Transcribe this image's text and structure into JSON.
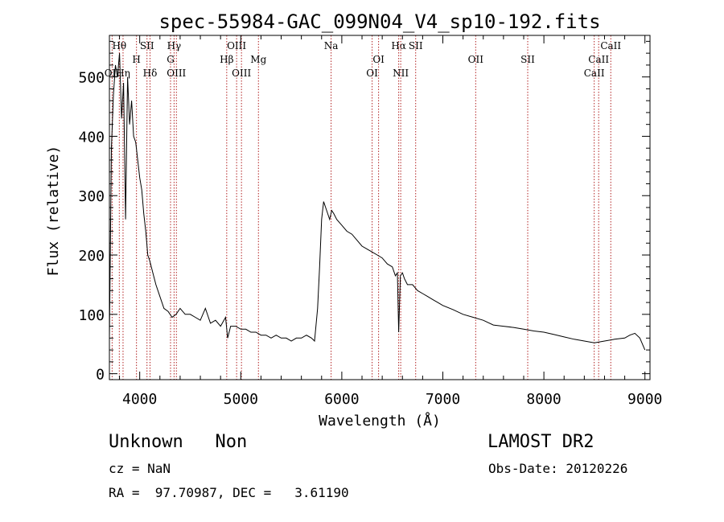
{
  "chart_data": {
    "type": "line",
    "title": "spec-55984-GAC_099N04_V4_sp10-192.fits",
    "xlabel": "Wavelength (Å)",
    "ylabel": "Flux (relative)",
    "xlim": [
      3700,
      9050
    ],
    "ylim": [
      -10,
      570
    ],
    "grid": false,
    "xticks": [
      4000,
      5000,
      6000,
      7000,
      8000,
      9000
    ],
    "yticks": [
      0,
      100,
      200,
      300,
      400,
      500
    ],
    "series": [
      {
        "x": [
          3700,
          3720,
          3740,
          3760,
          3780,
          3800,
          3820,
          3840,
          3860,
          3880,
          3900,
          3920,
          3940,
          3960,
          3980,
          4000,
          4020,
          4040,
          4060,
          4080,
          4100,
          4130,
          4160,
          4200,
          4240,
          4280,
          4320,
          4360,
          4400,
          4450,
          4500,
          4550,
          4600,
          4650,
          4700,
          4750,
          4800,
          4850,
          4870,
          4900,
          4950,
          5000,
          5050,
          5100,
          5150,
          5200,
          5250,
          5300,
          5350,
          5400,
          5450,
          5500,
          5550,
          5600,
          5650,
          5700,
          5730,
          5760,
          5780,
          5800,
          5820,
          5840,
          5860,
          5880,
          5900,
          5920,
          5950,
          6000,
          6050,
          6100,
          6150,
          6200,
          6250,
          6300,
          6350,
          6400,
          6450,
          6500,
          6530,
          6550,
          6563,
          6580,
          6600,
          6620,
          6650,
          6700,
          6750,
          6800,
          6850,
          6900,
          6950,
          7000,
          7100,
          7200,
          7300,
          7400,
          7500,
          7600,
          7700,
          7800,
          7900,
          8000,
          8100,
          8200,
          8300,
          8400,
          8500,
          8600,
          8700,
          8800,
          8850,
          8900,
          8950,
          9000
        ],
        "y": [
          60,
          380,
          470,
          520,
          500,
          540,
          430,
          490,
          260,
          500,
          420,
          460,
          400,
          390,
          360,
          330,
          310,
          270,
          240,
          200,
          190,
          170,
          150,
          130,
          110,
          105,
          95,
          100,
          110,
          100,
          100,
          95,
          90,
          110,
          85,
          90,
          80,
          95,
          60,
          80,
          80,
          75,
          75,
          70,
          70,
          65,
          65,
          60,
          65,
          60,
          60,
          55,
          60,
          60,
          65,
          60,
          55,
          110,
          180,
          260,
          290,
          280,
          270,
          260,
          275,
          270,
          260,
          250,
          240,
          235,
          225,
          215,
          210,
          205,
          200,
          195,
          185,
          180,
          165,
          170,
          70,
          165,
          170,
          160,
          150,
          150,
          140,
          135,
          130,
          125,
          120,
          115,
          108,
          100,
          95,
          90,
          82,
          80,
          78,
          75,
          72,
          70,
          66,
          62,
          58,
          55,
          52,
          55,
          58,
          60,
          65,
          68,
          60,
          40
        ]
      }
    ],
    "line_markers": [
      {
        "label": "Hθ",
        "x": 3798,
        "row": 1
      },
      {
        "label": "OII",
        "x": 3727,
        "row": 3
      },
      {
        "label": "Hη",
        "x": 3835,
        "row": 3
      },
      {
        "label": "SII",
        "x": 4072,
        "row": 1
      },
      {
        "label": "H",
        "x": 3968,
        "row": 2
      },
      {
        "label": "Hδ",
        "x": 4102,
        "row": 3
      },
      {
        "label": "Hγ",
        "x": 4340,
        "row": 1
      },
      {
        "label": "G",
        "x": 4305,
        "row": 2
      },
      {
        "label": "OIII",
        "x": 4363,
        "row": 3
      },
      {
        "label": "OIII",
        "x": 4959,
        "row": 1
      },
      {
        "label": "Hβ",
        "x": 4861,
        "row": 2
      },
      {
        "label": "OIII",
        "x": 5007,
        "row": 3
      },
      {
        "label": "Mg",
        "x": 5175,
        "row": 2
      },
      {
        "label": "Na",
        "x": 5894,
        "row": 1
      },
      {
        "label": "OI",
        "x": 6364,
        "row": 2
      },
      {
        "label": "OI",
        "x": 6300,
        "row": 3
      },
      {
        "label": "Hα",
        "x": 6563,
        "row": 1
      },
      {
        "label": "SII",
        "x": 6731,
        "row": 1
      },
      {
        "label": "NII",
        "x": 6583,
        "row": 3
      },
      {
        "label": "OII",
        "x": 7325,
        "row": 2
      },
      {
        "label": "SII",
        "x": 7840,
        "row": 2
      },
      {
        "label": "CaII",
        "x": 8662,
        "row": 1
      },
      {
        "label": "CaII",
        "x": 8542,
        "row": 2
      },
      {
        "label": "CaII",
        "x": 8498,
        "row": 3
      }
    ]
  },
  "footer": {
    "class_text": "Unknown   Non",
    "survey_text": "LAMOST DR2",
    "cz_text": "cz = NaN",
    "obs_date_text": "Obs-Date: 20120226",
    "radec_text": "RA =  97.70987, DEC =   3.61190"
  }
}
